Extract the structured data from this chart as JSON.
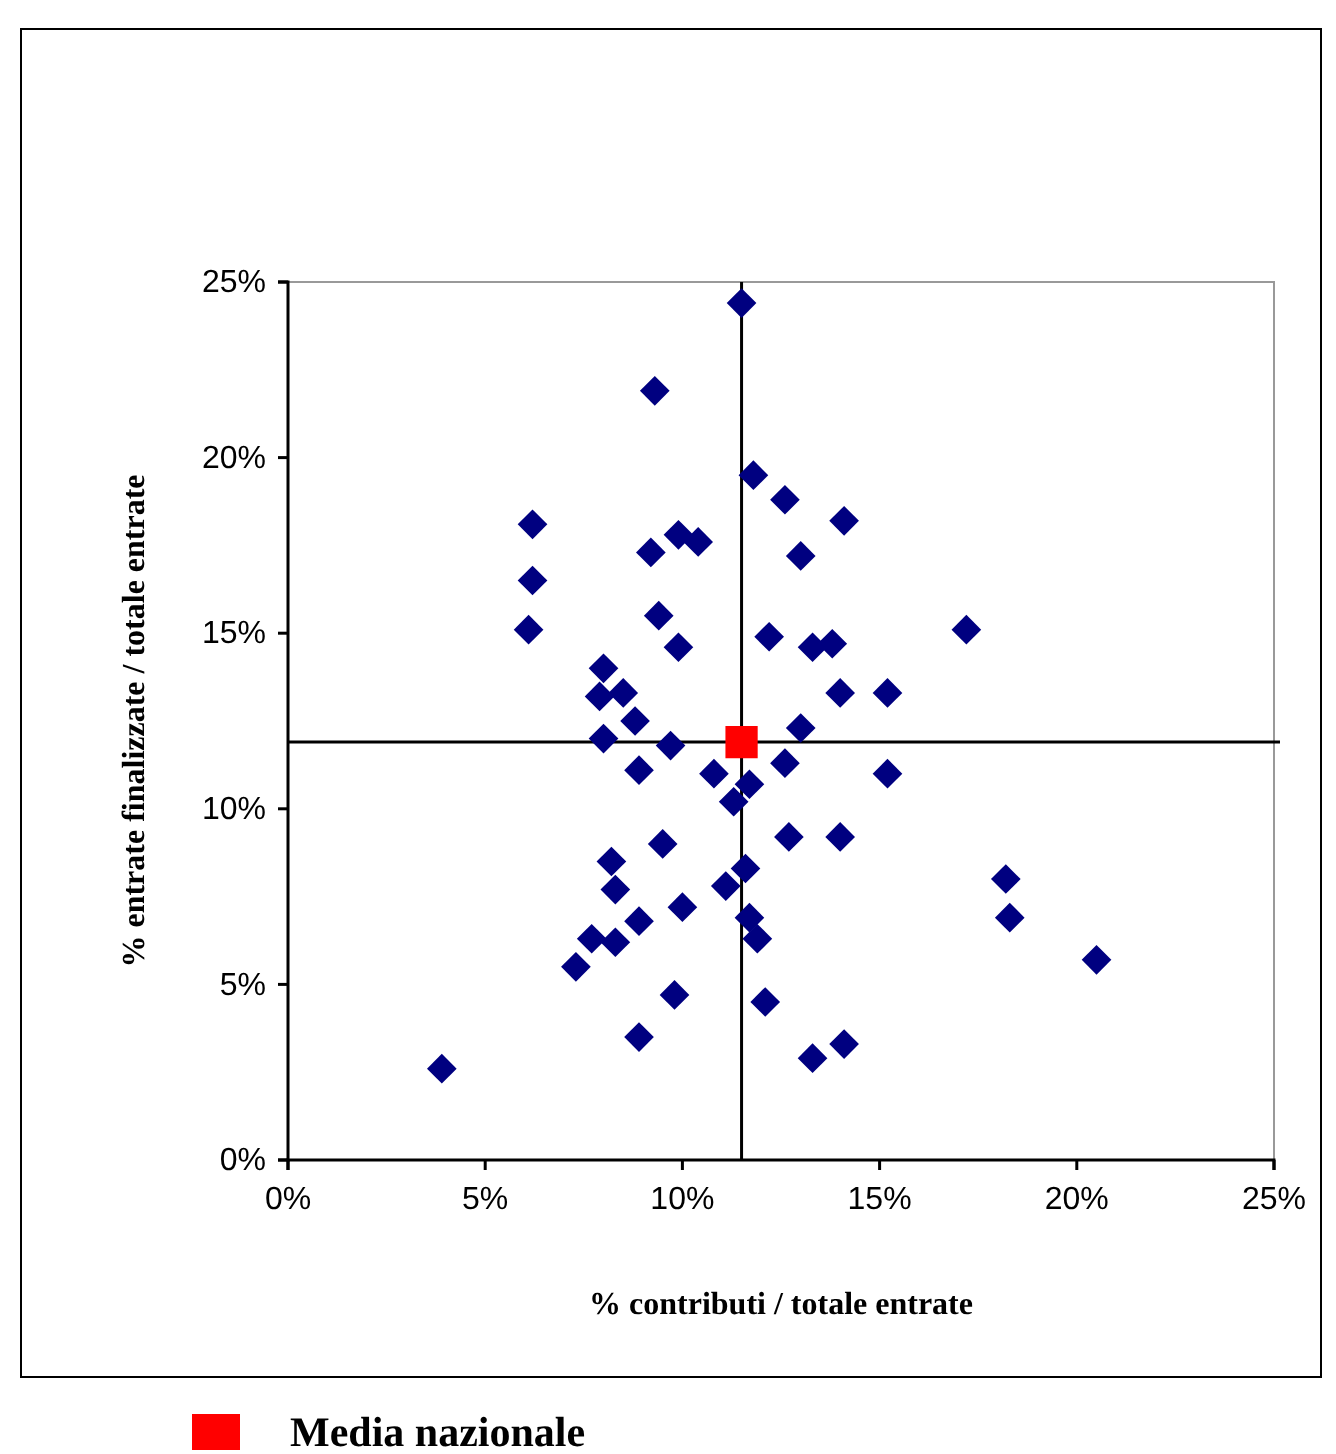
{
  "chart_data": {
    "type": "scatter",
    "xlabel": "%  contributi / totale entrate",
    "ylabel": "% entrate finalizzate / totale entrate",
    "xlim": [
      0,
      25
    ],
    "ylim": [
      0,
      25
    ],
    "xticks": [
      {
        "value": 0,
        "label": "0%"
      },
      {
        "value": 5,
        "label": "5%"
      },
      {
        "value": 10,
        "label": "10%"
      },
      {
        "value": 15,
        "label": "15%"
      },
      {
        "value": 20,
        "label": "20%"
      },
      {
        "value": 25,
        "label": "25%"
      }
    ],
    "yticks": [
      {
        "value": 0,
        "label": "0%"
      },
      {
        "value": 5,
        "label": "5%"
      },
      {
        "value": 10,
        "label": "10%"
      },
      {
        "value": 15,
        "label": "15%"
      },
      {
        "value": 20,
        "label": "20%"
      },
      {
        "value": 25,
        "label": "25%"
      }
    ],
    "grid": false,
    "legend": "bottom",
    "ref_lines": [
      {
        "axis": "x",
        "value": 11.5,
        "color": "#000000"
      },
      {
        "axis": "y",
        "value": 11.9,
        "color": "#000000"
      }
    ],
    "series": [
      {
        "color": "#000080",
        "marker": "diamond",
        "x": [
          11.5,
          9.3,
          11.8,
          12.6,
          14.1,
          6.2,
          9.9,
          10.4,
          9.2,
          13.0,
          6.2,
          9.4,
          6.1,
          17.2,
          12.2,
          13.8,
          13.3,
          9.9,
          8.0,
          7.9,
          8.5,
          14.0,
          15.2,
          8.8,
          13.0,
          8.0,
          9.7,
          12.6,
          15.2,
          11.7,
          11.3,
          8.9,
          10.8,
          9.5,
          8.2,
          8.3,
          11.6,
          11.1,
          10.0,
          8.9,
          11.7,
          11.9,
          7.7,
          8.3,
          7.3,
          9.8,
          12.1,
          8.9,
          3.9,
          12.7,
          14.0,
          18.2,
          18.3,
          20.5,
          14.1,
          13.3
        ],
        "values": [
          24.4,
          21.9,
          19.5,
          18.8,
          18.2,
          18.1,
          17.8,
          17.6,
          17.3,
          17.2,
          16.5,
          15.5,
          15.1,
          15.1,
          14.9,
          14.7,
          14.6,
          14.6,
          14.0,
          13.2,
          13.3,
          13.3,
          13.3,
          12.5,
          12.3,
          12.0,
          11.8,
          11.3,
          11.0,
          10.7,
          10.2,
          11.1,
          11.0,
          9.0,
          8.5,
          7.7,
          8.3,
          7.8,
          7.2,
          6.8,
          6.9,
          6.3,
          6.3,
          6.2,
          5.5,
          4.7,
          4.5,
          3.5,
          2.6,
          9.2,
          9.2,
          8.0,
          6.9,
          5.7,
          3.3,
          2.9
        ]
      },
      {
        "name": "Media nazionale",
        "color": "#ff0000",
        "marker": "square",
        "x": [
          11.5
        ],
        "values": [
          11.9
        ]
      }
    ]
  }
}
